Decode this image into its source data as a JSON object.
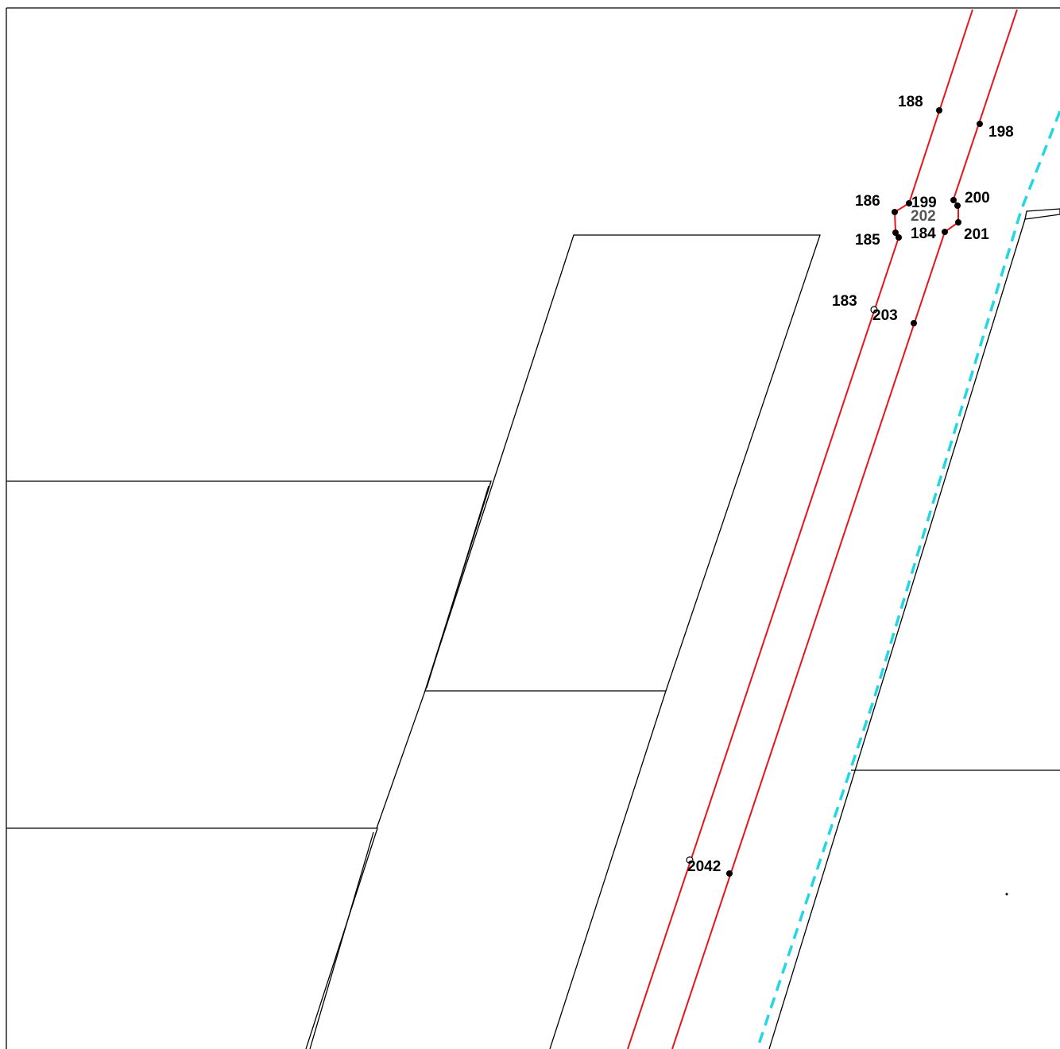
{
  "colors": {
    "background": "#ffffff",
    "parcel_boundary": "#000000",
    "red_boundary": "#e8141b",
    "cyan_boundary": "#23d6e4",
    "point_marker": "#000000"
  },
  "points": [
    {
      "id": "p188",
      "label": "188"
    },
    {
      "id": "p198",
      "label": "198"
    },
    {
      "id": "p186",
      "label": "186"
    },
    {
      "id": "p199",
      "label": "199"
    },
    {
      "id": "p202",
      "label": "202"
    },
    {
      "id": "p200",
      "label": "200"
    },
    {
      "id": "p185",
      "label": "185"
    },
    {
      "id": "p184",
      "label": "184"
    },
    {
      "id": "p201",
      "label": "201"
    },
    {
      "id": "p183",
      "label": "183"
    },
    {
      "id": "p203",
      "label": "203"
    },
    {
      "id": "p204",
      "label": "2042"
    }
  ]
}
